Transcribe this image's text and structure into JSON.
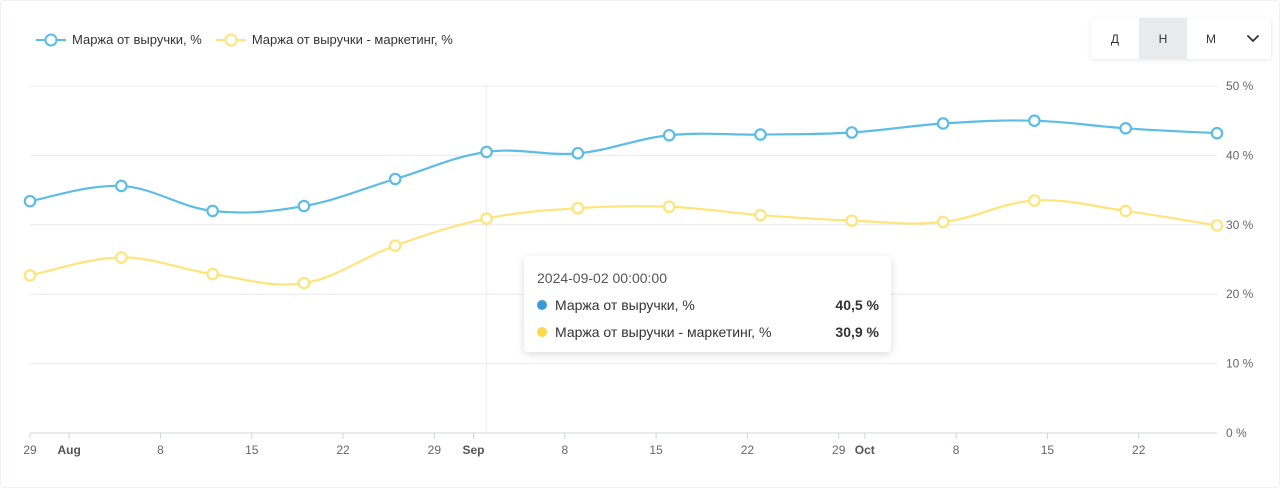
{
  "legend": {
    "series1_label": "Маржа от выручки, %",
    "series2_label": "Маржа от выручки - маркетинг, %"
  },
  "period_switch": {
    "day_label": "Д",
    "week_label": "Н",
    "month_label": "М",
    "active": "Н"
  },
  "tooltip": {
    "title": "2024-09-02 00:00:00",
    "rows": [
      {
        "name": "Маржа от выручки, %",
        "value": "40,5 %"
      },
      {
        "name": "Маржа от выручки - маркетинг, %",
        "value": "30,9 %"
      }
    ]
  },
  "colors": {
    "series1": "#5bbde6",
    "series2": "#fde57a",
    "series1_dot": "#3a9ad9",
    "series2_dot": "#f9d84a",
    "grid": "#e6e9f0",
    "axis_text": "#666666"
  },
  "chart_data": {
    "type": "line",
    "x": [
      "2024-07-29",
      "2024-08-05",
      "2024-08-12",
      "2024-08-19",
      "2024-08-26",
      "2024-09-02",
      "2024-09-09",
      "2024-09-16",
      "2024-09-23",
      "2024-09-30",
      "2024-10-07",
      "2024-10-14",
      "2024-10-21",
      "2024-10-28"
    ],
    "series": [
      {
        "name": "Маржа от выручки, %",
        "values": [
          33.4,
          35.6,
          32.0,
          32.7,
          36.6,
          40.5,
          40.3,
          42.9,
          43.0,
          43.3,
          44.6,
          45.0,
          43.9,
          43.2
        ]
      },
      {
        "name": "Маржа от выручки - маркетинг, %",
        "values": [
          22.7,
          25.3,
          22.9,
          21.6,
          27.0,
          30.9,
          32.4,
          32.6,
          31.4,
          30.6,
          30.4,
          33.5,
          32.0,
          29.9
        ]
      }
    ],
    "ylim": [
      0,
      50
    ],
    "y_ticks": [
      "0 %",
      "10 %",
      "20 %",
      "30 %",
      "40 %",
      "50 %"
    ],
    "x_ticks": [
      {
        "label": "29",
        "date": "2024-07-29",
        "bold": false
      },
      {
        "label": "Aug",
        "date": "2024-08-01",
        "bold": true
      },
      {
        "label": "8",
        "date": "2024-08-08",
        "bold": false
      },
      {
        "label": "15",
        "date": "2024-08-15",
        "bold": false
      },
      {
        "label": "22",
        "date": "2024-08-22",
        "bold": false
      },
      {
        "label": "29",
        "date": "2024-08-29",
        "bold": false
      },
      {
        "label": "Sep",
        "date": "2024-09-01",
        "bold": true
      },
      {
        "label": "8",
        "date": "2024-09-08",
        "bold": false
      },
      {
        "label": "15",
        "date": "2024-09-15",
        "bold": false
      },
      {
        "label": "22",
        "date": "2024-09-22",
        "bold": false
      },
      {
        "label": "29",
        "date": "2024-09-29",
        "bold": false
      },
      {
        "label": "Oct",
        "date": "2024-10-01",
        "bold": true
      },
      {
        "label": "8",
        "date": "2024-10-08",
        "bold": false
      },
      {
        "label": "15",
        "date": "2024-10-15",
        "bold": false
      },
      {
        "label": "22",
        "date": "2024-10-22",
        "bold": false
      }
    ],
    "highlighted_x": "2024-09-02",
    "grid": true,
    "legend_position": "top-left"
  }
}
